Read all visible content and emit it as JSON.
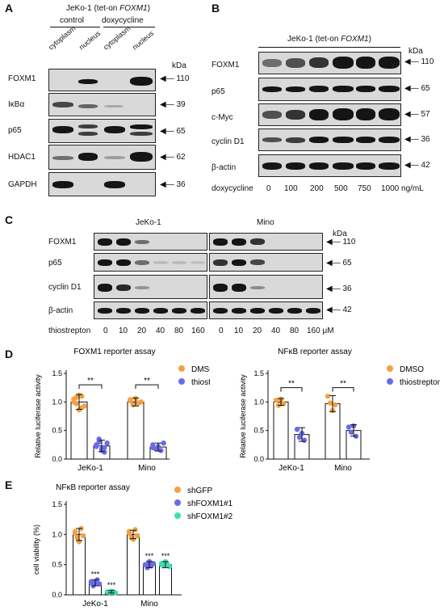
{
  "panels": {
    "A": {
      "label": "A",
      "title_prefix": "JeKo-1 (tet-on ",
      "title_gene": "FOXM1",
      "title_suffix": ")",
      "groups": [
        "control",
        "doxycycline"
      ],
      "lanes": [
        "cytoplasm",
        "nucleus",
        "cytoplasm",
        "nucleus"
      ],
      "kda_header": "kDa",
      "rows": [
        {
          "protein": "FOXM1",
          "kda": "110"
        },
        {
          "protein": "IκBα",
          "kda": "39"
        },
        {
          "protein": "p65",
          "kda": "65"
        },
        {
          "protein": "HDAC1",
          "kda": "62"
        },
        {
          "protein": "GAPDH",
          "kda": "36"
        }
      ]
    },
    "B": {
      "label": "B",
      "title_prefix": "JeKo-1 (tet-on ",
      "title_gene": "FOXM1",
      "title_suffix": ")",
      "kda_header": "kDa",
      "rows": [
        {
          "protein": "FOXM1",
          "kda": "110"
        },
        {
          "protein": "p65",
          "kda": "65"
        },
        {
          "protein": "c-Myc",
          "kda": "57"
        },
        {
          "protein": "cyclin D1",
          "kda": "36"
        },
        {
          "protein": "β-actin",
          "kda": "42"
        }
      ],
      "treatment_label": "doxycycline",
      "doses": [
        "0",
        "100",
        "200",
        "500",
        "750",
        "1000 ng/mL"
      ]
    },
    "C": {
      "label": "C",
      "cell_lines": [
        "JeKo-1",
        "Mino"
      ],
      "kda_header": "kDa",
      "rows": [
        {
          "protein": "FOXM1",
          "kda": "110"
        },
        {
          "protein": "p65",
          "kda": "65"
        },
        {
          "protein": "cyclin D1",
          "kda": "36"
        },
        {
          "protein": "β-actin",
          "kda": "42"
        }
      ],
      "treatment_label": "thiostrepton",
      "doses": [
        "0",
        "10",
        "20",
        "40",
        "80",
        "160",
        "0",
        "10",
        "20",
        "40",
        "80",
        "160 μM"
      ]
    },
    "D": {
      "label": "D"
    },
    "E": {
      "label": "E"
    }
  },
  "chart_data": [
    {
      "type": "bar",
      "title": "FOXM1 reporter assay",
      "ylabel": "Relative luciferase activity",
      "categories": [
        "JeKo-1",
        "Mino"
      ],
      "ylim": [
        0,
        1.5
      ],
      "yticks": [
        "0.0",
        "0.5",
        "1.0",
        "1.5"
      ],
      "series": [
        {
          "name": "DMSO",
          "color": "#f5a142",
          "values": [
            1.0,
            1.0
          ],
          "err": [
            0.13,
            0.07
          ],
          "points": [
            [
              1.05,
              0.97,
              0.86,
              1.1,
              0.93,
              1.0,
              1.08,
              1.12,
              0.9
            ],
            [
              1.02,
              0.95,
              1.06,
              0.98,
              1.0,
              1.04
            ]
          ]
        },
        {
          "name": "thiostrepton",
          "color": "#6b6bea",
          "values": [
            0.23,
            0.21
          ],
          "err": [
            0.1,
            0.07
          ],
          "points": [
            [
              0.25,
              0.35,
              0.18,
              0.12,
              0.28,
              0.22,
              0.3,
              0.15,
              0.2
            ],
            [
              0.25,
              0.18,
              0.22,
              0.15,
              0.28,
              0.2
            ]
          ]
        }
      ],
      "significance": [
        "**",
        "**"
      ],
      "legend": "right"
    },
    {
      "type": "bar",
      "title": "NFκB reporter assay",
      "ylabel": "Relative luciferase activity",
      "categories": [
        "JeKo-1",
        "Mino"
      ],
      "ylim": [
        0,
        1.5
      ],
      "yticks": [
        "0.0",
        "0.5",
        "1.0",
        "1.5"
      ],
      "series": [
        {
          "name": "DMSO",
          "color": "#f5a142",
          "values": [
            1.0,
            0.97
          ],
          "err": [
            0.06,
            0.14
          ],
          "points": [
            [
              1.03,
              0.94,
              1.05,
              0.97
            ],
            [
              1.1,
              0.98,
              0.85,
              0.95
            ]
          ]
        },
        {
          "name": "thiostrepton",
          "color": "#6b6bea",
          "values": [
            0.43,
            0.5
          ],
          "err": [
            0.12,
            0.1
          ],
          "points": [
            [
              0.52,
              0.38,
              0.45,
              0.33
            ],
            [
              0.56,
              0.47,
              0.58,
              0.4
            ]
          ]
        }
      ],
      "significance": [
        "**",
        "**"
      ],
      "legend": "right"
    },
    {
      "type": "bar",
      "title": "NFκB reporter assay",
      "ylabel": "cell viability (%)",
      "categories": [
        "JeKo-1",
        "Mino"
      ],
      "ylim": [
        0,
        1.5
      ],
      "yticks": [
        "0.0",
        "0.5",
        "1.0",
        "1.5"
      ],
      "series": [
        {
          "name": "shGFP",
          "color": "#f5a142",
          "values": [
            1.0,
            1.0
          ],
          "err": [
            0.1,
            0.07
          ],
          "points": [
            [
              1.05,
              0.95,
              0.88,
              1.1,
              0.98,
              1.02
            ],
            [
              1.05,
              0.95,
              0.92,
              1.08,
              0.98,
              1.02
            ]
          ]
        },
        {
          "name": "shFOXM1#1",
          "color": "#6b6bea",
          "values": [
            0.2,
            0.5
          ],
          "err": [
            0.05,
            0.05
          ],
          "points": [
            [
              0.22,
              0.15,
              0.2,
              0.25,
              0.18,
              0.2
            ],
            [
              0.5,
              0.45,
              0.55,
              0.48,
              0.52,
              0.5
            ]
          ]
        },
        {
          "name": "shFOXM1#2",
          "color": "#3de0b0",
          "values": [
            0.05,
            0.5
          ],
          "err": [
            0.02,
            0.05
          ],
          "points": [
            [
              0.05,
              0.04,
              0.06,
              0.05,
              0.03,
              0.05
            ],
            [
              0.52,
              0.48,
              0.55,
              0.5,
              0.47,
              0.5
            ]
          ]
        }
      ],
      "significance": [
        "***",
        "***",
        "***",
        "***"
      ],
      "legend": "right"
    }
  ]
}
